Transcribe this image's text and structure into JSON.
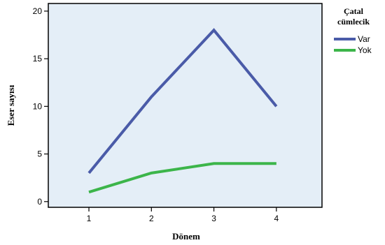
{
  "chart_data": {
    "type": "line",
    "title": "",
    "xlabel": "Dönem",
    "ylabel": "Eser sayısı",
    "x": [
      1,
      2,
      3,
      4
    ],
    "x_tick_labels": [
      "1",
      "2",
      "3",
      "4"
    ],
    "xlim": [
      0.35,
      4.73
    ],
    "ylim": [
      -0.6,
      20.8
    ],
    "y_ticks": [
      0,
      5,
      10,
      15,
      20
    ],
    "y_tick_labels": [
      "0",
      "5",
      "10",
      "15",
      "20"
    ],
    "grid": false,
    "legend": {
      "title_line1": "Çatal",
      "title_line2": "cümlecik",
      "placement": "right"
    },
    "series": [
      {
        "name": "Var",
        "color": "#4a5ba8",
        "values": [
          3,
          11,
          18,
          10
        ]
      },
      {
        "name": "Yok",
        "color": "#3cb54a",
        "values": [
          1,
          3,
          4,
          4
        ]
      }
    ],
    "plot_background": "#e4eef7"
  }
}
